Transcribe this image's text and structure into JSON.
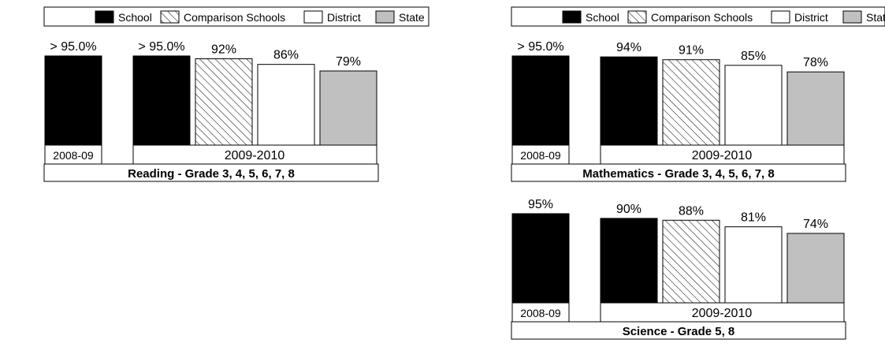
{
  "legend": [
    {
      "label": "School",
      "style": "solid-black"
    },
    {
      "label": "Comparison Schools",
      "style": "hatched"
    },
    {
      "label": "District",
      "style": "white"
    },
    {
      "label": "State",
      "style": "gray"
    }
  ],
  "colors": {
    "school": "#000000",
    "comparison": "#ffffff",
    "district": "#ffffff",
    "state": "#c0c0c0"
  },
  "chart_data": [
    {
      "type": "bar",
      "title": "Reading - Grade 3, 4, 5, 6, 7, 8",
      "groups": [
        {
          "label": "2008-09",
          "bars": [
            {
              "series": "School",
              "value": 95,
              "display": "> 95.0%"
            }
          ]
        },
        {
          "label": "2009-2010",
          "bars": [
            {
              "series": "School",
              "value": 95,
              "display": "> 95.0%"
            },
            {
              "series": "Comparison Schools",
              "value": 92,
              "display": "92%"
            },
            {
              "series": "District",
              "value": 86,
              "display": "86%"
            },
            {
              "series": "State",
              "value": 79,
              "display": "79%"
            }
          ]
        }
      ],
      "ylim": [
        0,
        100
      ],
      "grid": false,
      "legend_position": "top"
    },
    {
      "type": "bar",
      "title": "Mathematics - Grade 3, 4, 5, 6, 7, 8",
      "groups": [
        {
          "label": "2008-09",
          "bars": [
            {
              "series": "School",
              "value": 95,
              "display": "> 95.0%"
            }
          ]
        },
        {
          "label": "2009-2010",
          "bars": [
            {
              "series": "School",
              "value": 94,
              "display": "94%"
            },
            {
              "series": "Comparison Schools",
              "value": 91,
              "display": "91%"
            },
            {
              "series": "District",
              "value": 85,
              "display": "85%"
            },
            {
              "series": "State",
              "value": 78,
              "display": "78%"
            }
          ]
        }
      ],
      "ylim": [
        0,
        100
      ],
      "grid": false,
      "legend_position": "top"
    },
    {
      "type": "bar",
      "title": "Science - Grade 5, 8",
      "groups": [
        {
          "label": "2008-09",
          "bars": [
            {
              "series": "School",
              "value": 95,
              "display": "95%"
            }
          ]
        },
        {
          "label": "2009-2010",
          "bars": [
            {
              "series": "School",
              "value": 90,
              "display": "90%"
            },
            {
              "series": "Comparison Schools",
              "value": 88,
              "display": "88%"
            },
            {
              "series": "District",
              "value": 81,
              "display": "81%"
            },
            {
              "series": "State",
              "value": 74,
              "display": "74%"
            }
          ]
        }
      ],
      "ylim": [
        0,
        100
      ],
      "grid": false,
      "legend_position": "none"
    }
  ]
}
